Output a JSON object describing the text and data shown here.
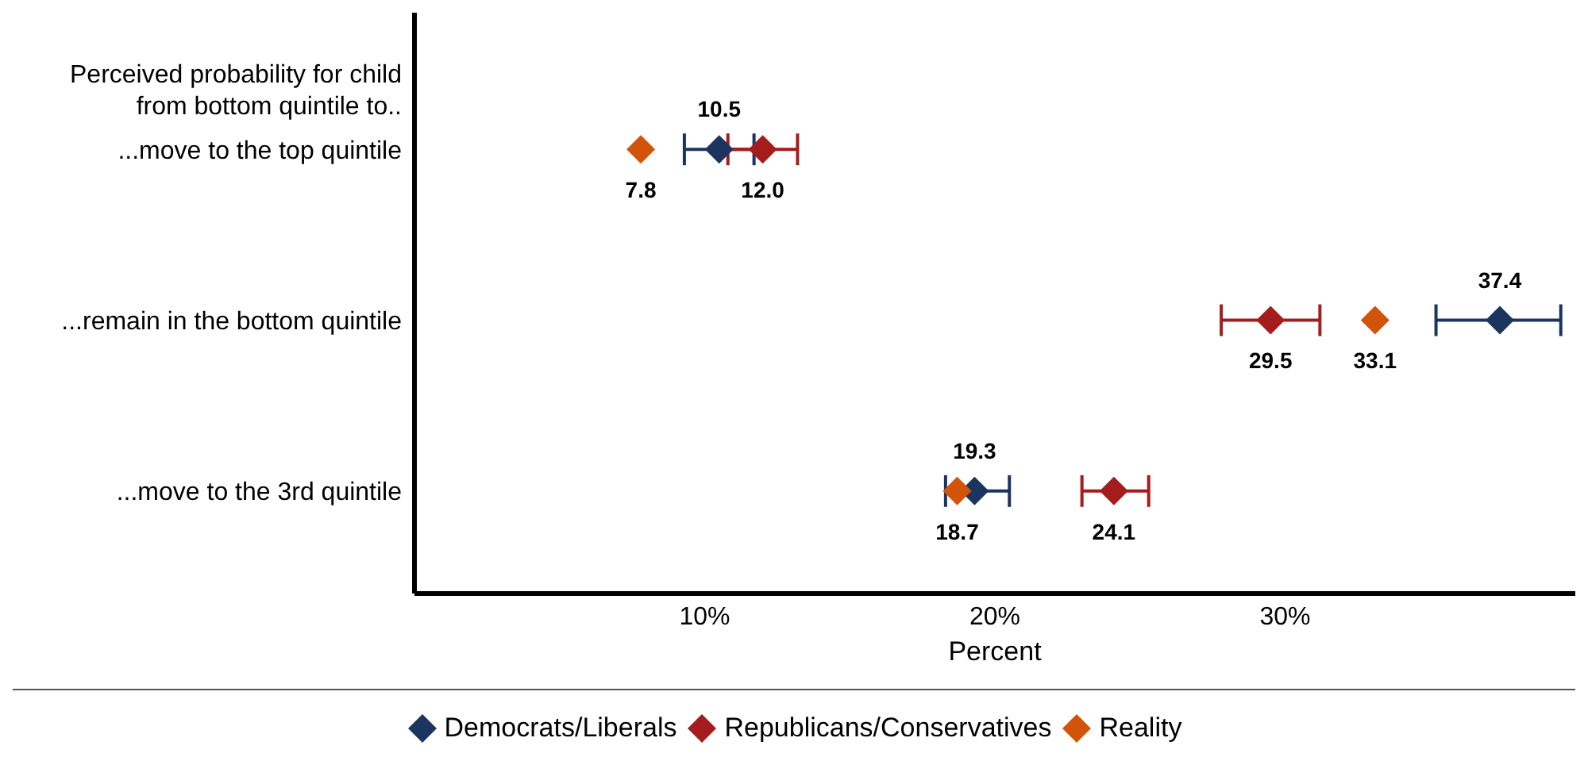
{
  "chart_data": {
    "type": "scatter",
    "orientation": "horizontal",
    "xlabel": "Percent",
    "annotations": [
      "Perceived probability for child from bottom quintile to.."
    ],
    "categories": [
      "...move to the top quintile",
      "...remain in the bottom quintile",
      "...move to the 3rd quintile"
    ],
    "series": [
      {
        "name": "Democrats/Liberals",
        "color": "#1c355e",
        "values": [
          10.5,
          37.4,
          19.3
        ],
        "value_labels": [
          "10.5",
          "37.4",
          "19.3"
        ],
        "errors": [
          [
            9.3,
            11.7
          ],
          [
            35.2,
            39.5
          ],
          [
            18.3,
            20.5
          ]
        ]
      },
      {
        "name": "Republicans/Conservatives",
        "color": "#a51c1c",
        "values": [
          12.0,
          29.5,
          24.1
        ],
        "value_labels": [
          "12.0",
          "29.5",
          "24.1"
        ],
        "errors": [
          [
            10.8,
            13.2
          ],
          [
            27.8,
            31.2
          ],
          [
            23.0,
            25.3
          ]
        ]
      },
      {
        "name": "Reality",
        "color": "#d2540a",
        "values": [
          7.8,
          33.1,
          18.7
        ],
        "value_labels": [
          "7.8",
          "33.1",
          "18.7"
        ]
      }
    ],
    "xlim": [
      0,
      40
    ],
    "xticks": [
      {
        "value": 10,
        "label": "10%"
      },
      {
        "value": 20,
        "label": "20%"
      },
      {
        "value": 30,
        "label": "30%"
      }
    ],
    "marker": "diamond",
    "grid": false,
    "legend": "bottom"
  }
}
